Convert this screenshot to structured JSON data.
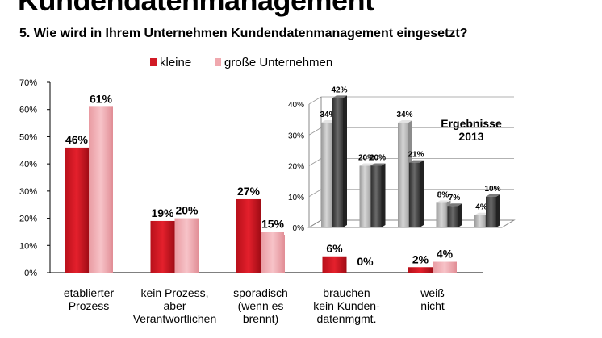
{
  "header": {
    "title": "Kundendatenmanagement",
    "subtitle": "5. Wie wird in Ihrem Unternehmen Kundendatenmanagement eingesetzt?"
  },
  "chart_data": [
    {
      "type": "bar",
      "categories": [
        [
          "etablierter",
          "Prozess"
        ],
        [
          "kein Prozess,",
          "aber",
          "Verantwortlichen"
        ],
        [
          "sporadisch",
          "(wenn es",
          "brennt)"
        ],
        [
          "brauchen",
          "kein Kunden-",
          "datenmgmt."
        ],
        [
          "weiß",
          "nicht"
        ]
      ],
      "series": [
        {
          "name": "kleine",
          "values": [
            46,
            19,
            27,
            6,
            2
          ],
          "labels": [
            "46%",
            "19%",
            "27%",
            "6%",
            "2%"
          ],
          "color": "#d11a25"
        },
        {
          "name": "große Unternehmen",
          "values": [
            61,
            20,
            15,
            0,
            4
          ],
          "labels": [
            "61%",
            "20%",
            "15%",
            "0%",
            "4%"
          ],
          "color": "#f0a8ae"
        }
      ],
      "ylim": [
        0,
        70
      ],
      "yticks": [
        0,
        10,
        20,
        30,
        40,
        50,
        60,
        70
      ],
      "ytick_labels": [
        "0%",
        "10%",
        "20%",
        "30%",
        "40%",
        "50%",
        "60%",
        "70%"
      ],
      "legend_position": "top",
      "grid": false
    },
    {
      "type": "bar",
      "title": [
        "Ergebnisse",
        "2013"
      ],
      "series": [
        {
          "name": "kleine",
          "values": [
            34,
            20,
            34,
            8,
            4
          ],
          "labels": [
            "34%",
            "20%",
            "34%",
            "8%",
            "4%"
          ],
          "color": "#b5b5b5"
        },
        {
          "name": "große Unternehmen",
          "values": [
            42,
            20,
            21,
            7,
            10
          ],
          "labels": [
            "42%",
            "20%",
            "21%",
            "7%",
            "10%"
          ],
          "color": "#4a4a4a"
        }
      ],
      "ylim": [
        0,
        40
      ],
      "yticks": [
        0,
        10,
        20,
        30,
        40
      ],
      "ytick_labels": [
        "0%",
        "10%",
        "20%",
        "30%",
        "40%"
      ],
      "grid": true
    }
  ]
}
